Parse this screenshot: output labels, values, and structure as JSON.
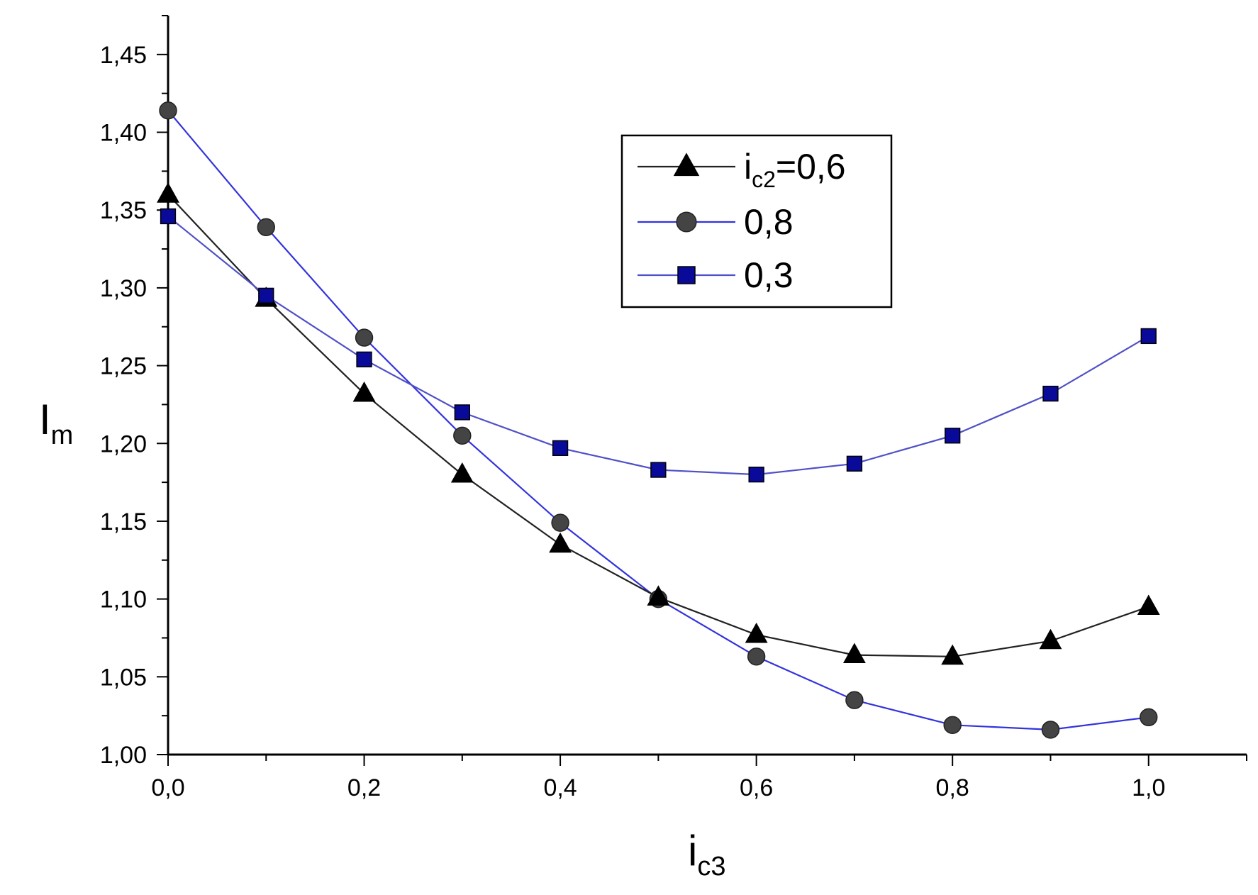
{
  "chart_data": {
    "type": "line",
    "x": [
      0.0,
      0.1,
      0.2,
      0.3,
      0.4,
      0.5,
      0.6,
      0.7,
      0.8,
      0.9,
      1.0
    ],
    "xlabel": {
      "main": "i",
      "sub": "c3"
    },
    "ylabel": {
      "main": "I",
      "sub": "m"
    },
    "xlim": [
      0.0,
      1.1
    ],
    "ylim": [
      1.0,
      1.475
    ],
    "xticks": [
      0.0,
      0.2,
      0.4,
      0.6,
      0.8,
      1.0
    ],
    "xtick_labels": [
      "0,0",
      "0,2",
      "0,4",
      "0,6",
      "0,8",
      "1,0"
    ],
    "yticks": [
      1.0,
      1.05,
      1.1,
      1.15,
      1.2,
      1.25,
      1.3,
      1.35,
      1.4,
      1.45
    ],
    "ytick_labels": [
      "1,00",
      "1,05",
      "1,10",
      "1,15",
      "1,20",
      "1,25",
      "1,30",
      "1,35",
      "1,40",
      "1,45"
    ],
    "grid": false,
    "legend": {
      "placement": "top-right",
      "label_prefix": "i",
      "label_sub": "c2",
      "label_suffix": "="
    },
    "series": [
      {
        "name": "0,6",
        "marker": "triangle",
        "line_color": "#222222",
        "marker_color": "#000000",
        "values": [
          1.36,
          1.293,
          1.232,
          1.18,
          1.135,
          1.101,
          1.077,
          1.064,
          1.063,
          1.073,
          1.095
        ]
      },
      {
        "name": "0,8",
        "marker": "circle",
        "line_color": "#3333dd",
        "marker_color": "#444444",
        "values": [
          1.414,
          1.339,
          1.268,
          1.205,
          1.149,
          1.1,
          1.063,
          1.035,
          1.019,
          1.016,
          1.024
        ]
      },
      {
        "name": "0,3",
        "marker": "square",
        "line_color": "#5050c8",
        "marker_color": "#0a0a9a",
        "values": [
          1.346,
          1.295,
          1.254,
          1.22,
          1.197,
          1.183,
          1.18,
          1.187,
          1.205,
          1.232,
          1.269
        ]
      }
    ]
  }
}
